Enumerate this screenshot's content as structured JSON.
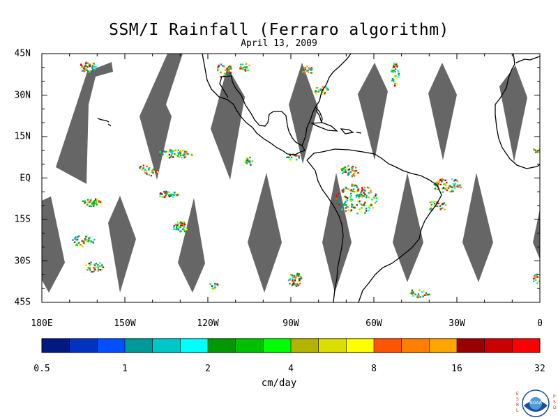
{
  "title": "SSM/I Rainfall (Ferraro algorithm)",
  "subtitle": "April 13, 2009",
  "y_axis_labels": [
    "45N",
    "30N",
    "15N",
    "EQ",
    "15S",
    "30S",
    "45S"
  ],
  "y_axis_values": [
    45,
    30,
    15,
    0,
    -15,
    -30,
    -45
  ],
  "x_axis_labels": [
    "180E",
    "150W",
    "120W",
    "90W",
    "60W",
    "30W",
    "0"
  ],
  "x_axis_values": [
    -180,
    -150,
    -120,
    -90,
    -60,
    -30,
    0
  ],
  "colorbar": {
    "labels": [
      "0.5",
      "1",
      "2",
      "4",
      "8",
      "16",
      "32"
    ],
    "unit": "cm/day",
    "colors": [
      "#001a80",
      "#0033c0",
      "#0050ff",
      "#009999",
      "#00c8c8",
      "#00ffff",
      "#009900",
      "#00c000",
      "#00ff00",
      "#b3b300",
      "#dddd00",
      "#ffff00",
      "#ff5500",
      "#ff8000",
      "#ffa500",
      "#990000",
      "#cc0000",
      "#ff0000"
    ]
  },
  "colors": {
    "no_data_swath": "#666666",
    "coastline": "#000000"
  },
  "logo": {
    "left_letters": "E\nS\nR\nL",
    "right_letters": "P\nS\nD",
    "emblem_text": "NOAA"
  }
}
